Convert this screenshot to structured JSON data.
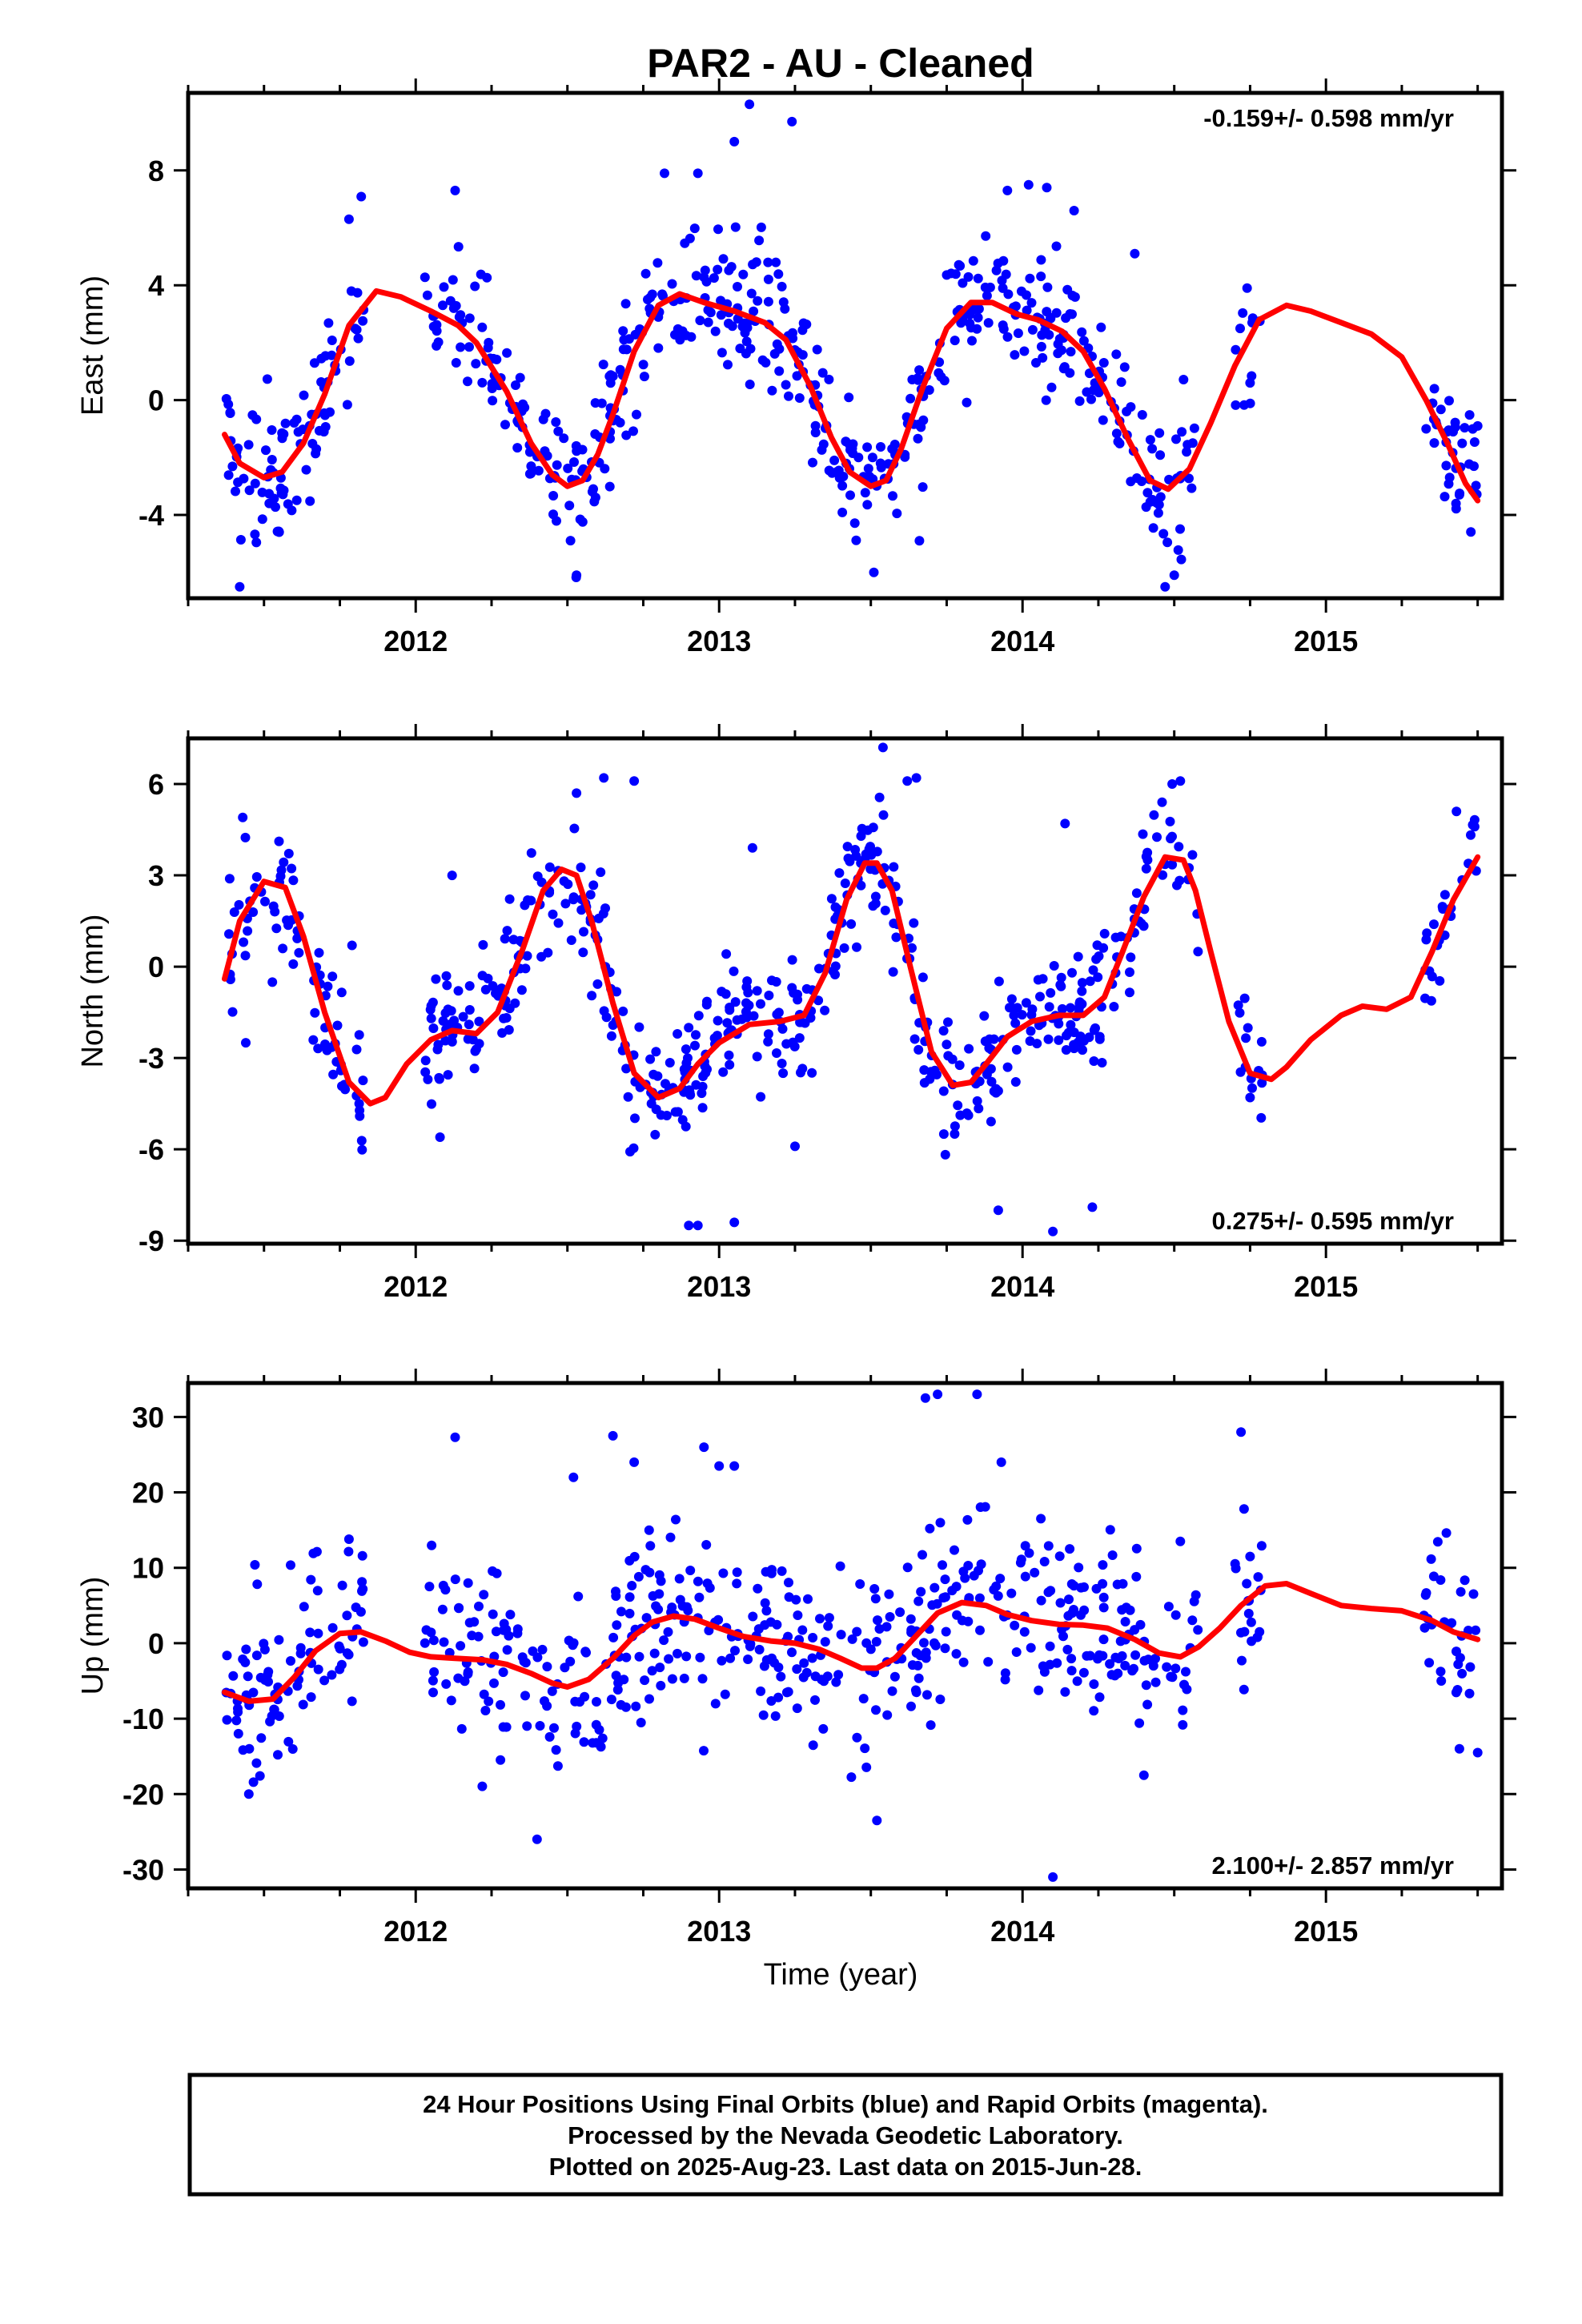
{
  "title": "PAR2  - AU - Cleaned",
  "footer": {
    "lines": [
      "24 Hour Positions Using Final Orbits (blue) and Rapid Orbits (magenta).",
      "Processed by the Nevada Geodetic Laboratory.",
      "Plotted on 2025-Aug-23. Last data on 2015-Jun-28."
    ]
  },
  "colors": {
    "final_orbits": "#0000ff",
    "model_fit": "#ff0000",
    "axes": "#000000"
  },
  "chart_data": [
    {
      "type": "scatter",
      "component": "east",
      "ylabel": "East (mm)",
      "xlabel": "",
      "rate_label": "-0.159+/- 0.598 mm/yr",
      "rate_position": "top-right",
      "xlim": [
        2011.25,
        2015.58
      ],
      "ylim": [
        -6.9,
        10.7
      ],
      "x_ticks": [
        2012,
        2013,
        2014,
        2015
      ],
      "y_ticks": [
        -4,
        0,
        4,
        8
      ],
      "grid": false,
      "series": [
        {
          "kind": "points",
          "n": 760,
          "x_range": [
            2011.37,
            2015.5
          ],
          "gaps": [
            [
              2011.83,
              2012.03
            ],
            [
              2014.58,
              2014.7
            ],
            [
              2014.79,
              2015.32
            ]
          ],
          "scatter_mm": 1.2,
          "points": [
            [
              2011.42,
              -6.5
            ],
            [
              2011.55,
              -4.6
            ],
            [
              2011.78,
              6.3
            ],
            [
              2012.13,
              7.3
            ],
            [
              2012.53,
              -6.1
            ],
            [
              2012.82,
              7.9
            ],
            [
              2012.93,
              7.9
            ],
            [
              2013.05,
              9.0
            ],
            [
              2013.1,
              10.3
            ],
            [
              2013.24,
              9.7
            ],
            [
              2013.51,
              -6.0
            ],
            [
              2013.66,
              -4.9
            ],
            [
              2013.95,
              7.3
            ],
            [
              2014.02,
              7.5
            ],
            [
              2014.08,
              7.4
            ],
            [
              2014.17,
              6.6
            ],
            [
              2014.37,
              5.1
            ],
            [
              2014.47,
              -6.5
            ],
            [
              2014.5,
              -6.1
            ],
            [
              2014.74,
              3.9
            ],
            [
              2014.75,
              0.6
            ],
            [
              2015.33,
              -1.0
            ],
            [
              2015.4,
              -1.1
            ],
            [
              2015.44,
              -3.3
            ],
            [
              2015.5,
              -0.9
            ]
          ]
        },
        {
          "kind": "line",
          "x": [
            2011.37,
            2011.42,
            2011.5,
            2011.56,
            2011.63,
            2011.7,
            2011.78,
            2011.87,
            2011.95,
            2012.05,
            2012.14,
            2012.2,
            2012.3,
            2012.38,
            2012.45,
            2012.5,
            2012.55,
            2012.6,
            2012.65,
            2012.72,
            2012.8,
            2012.87,
            2012.95,
            2013.05,
            2013.15,
            2013.22,
            2013.3,
            2013.37,
            2013.43,
            2013.5,
            2013.55,
            2013.6,
            2013.67,
            2013.75,
            2013.83,
            2013.9,
            2013.98,
            2014.05,
            2014.13,
            2014.2,
            2014.27,
            2014.35,
            2014.42,
            2014.48,
            2014.55,
            2014.62,
            2014.7,
            2014.78,
            2014.87,
            2014.95,
            2015.05,
            2015.15,
            2015.25,
            2015.33,
            2015.4,
            2015.46,
            2015.5
          ],
          "y": [
            -1.2,
            -2.2,
            -2.7,
            -2.5,
            -1.5,
            0.2,
            2.6,
            3.8,
            3.6,
            3.1,
            2.6,
            2.0,
            0.3,
            -1.5,
            -2.6,
            -3.0,
            -2.8,
            -1.9,
            -0.5,
            1.7,
            3.3,
            3.7,
            3.4,
            3.1,
            2.7,
            2.1,
            0.5,
            -1.3,
            -2.5,
            -3.0,
            -2.8,
            -1.7,
            0.4,
            2.5,
            3.4,
            3.4,
            3.0,
            2.8,
            2.4,
            1.7,
            0.4,
            -1.4,
            -2.8,
            -3.1,
            -2.4,
            -0.8,
            1.2,
            2.8,
            3.3,
            3.1,
            2.7,
            2.3,
            1.5,
            0.0,
            -1.5,
            -2.9,
            -3.5
          ]
        }
      ]
    },
    {
      "type": "scatter",
      "component": "north",
      "ylabel": "North (mm)",
      "xlabel": "",
      "rate_label": "0.275+/- 0.595 mm/yr",
      "rate_position": "bottom-right",
      "xlim": [
        2011.25,
        2015.58
      ],
      "ylim": [
        -9.1,
        7.5
      ],
      "x_ticks": [
        2012,
        2013,
        2014,
        2015
      ],
      "y_ticks": [
        -9,
        -6,
        -3,
        0,
        3,
        6
      ],
      "grid": false,
      "series": [
        {
          "kind": "points",
          "n": 760,
          "x_range": [
            2011.37,
            2015.5
          ],
          "gaps": [
            [
              2011.83,
              2012.03
            ],
            [
              2014.58,
              2014.7
            ],
            [
              2014.79,
              2015.32
            ]
          ],
          "scatter_mm": 1.1,
          "points": [
            [
              2011.44,
              -2.5
            ],
            [
              2011.43,
              4.9
            ],
            [
              2011.79,
              0.7
            ],
            [
              2012.12,
              3.0
            ],
            [
              2012.08,
              -5.6
            ],
            [
              2012.53,
              5.7
            ],
            [
              2012.62,
              6.2
            ],
            [
              2012.72,
              6.1
            ],
            [
              2012.9,
              -8.5
            ],
            [
              2012.93,
              -8.5
            ],
            [
              2013.05,
              -8.4
            ],
            [
              2013.11,
              3.9
            ],
            [
              2013.25,
              -5.9
            ],
            [
              2013.54,
              7.2
            ],
            [
              2013.62,
              6.1
            ],
            [
              2013.65,
              6.2
            ],
            [
              2013.92,
              -8.0
            ],
            [
              2014.1,
              -8.7
            ],
            [
              2014.14,
              4.7
            ],
            [
              2014.23,
              -7.9
            ],
            [
              2014.46,
              5.4
            ],
            [
              2014.52,
              6.1
            ],
            [
              2014.75,
              -4.3
            ],
            [
              2015.43,
              5.1
            ],
            [
              2015.49,
              4.6
            ]
          ]
        },
        {
          "kind": "line",
          "x": [
            2011.37,
            2011.42,
            2011.5,
            2011.57,
            2011.63,
            2011.7,
            2011.78,
            2011.85,
            2011.9,
            2011.97,
            2012.05,
            2012.12,
            2012.2,
            2012.27,
            2012.35,
            2012.42,
            2012.48,
            2012.53,
            2012.58,
            2012.65,
            2012.72,
            2012.8,
            2012.87,
            2012.93,
            2013.0,
            2013.1,
            2013.2,
            2013.28,
            2013.35,
            2013.42,
            2013.48,
            2013.52,
            2013.57,
            2013.63,
            2013.7,
            2013.77,
            2013.83,
            2013.88,
            2013.95,
            2014.03,
            2014.12,
            2014.2,
            2014.27,
            2014.33,
            2014.4,
            2014.47,
            2014.53,
            2014.57,
            2014.62,
            2014.68,
            2014.75,
            2014.82,
            2014.87,
            2014.95,
            2015.05,
            2015.12,
            2015.2,
            2015.28,
            2015.35,
            2015.42,
            2015.5
          ],
          "y": [
            -0.4,
            1.5,
            2.8,
            2.6,
            1.0,
            -1.5,
            -3.8,
            -4.5,
            -4.3,
            -3.2,
            -2.4,
            -2.1,
            -2.2,
            -1.5,
            0.5,
            2.5,
            3.2,
            3.0,
            1.5,
            -1.2,
            -3.5,
            -4.3,
            -4.0,
            -3.2,
            -2.5,
            -1.9,
            -1.8,
            -1.6,
            -0.2,
            2.2,
            3.4,
            3.4,
            2.5,
            0.0,
            -2.8,
            -3.9,
            -3.8,
            -3.2,
            -2.3,
            -1.8,
            -1.6,
            -1.6,
            -1.0,
            0.5,
            2.3,
            3.6,
            3.5,
            2.5,
            0.5,
            -1.8,
            -3.5,
            -3.7,
            -3.3,
            -2.4,
            -1.6,
            -1.3,
            -1.4,
            -1.0,
            0.5,
            2.2,
            3.6
          ]
        }
      ]
    },
    {
      "type": "scatter",
      "component": "up",
      "ylabel": "Up (mm)",
      "xlabel": "Time (year)",
      "rate_label": "2.100+/- 2.857 mm/yr",
      "rate_position": "bottom-right",
      "xlim": [
        2011.25,
        2015.58
      ],
      "ylim": [
        -32.5,
        34.5
      ],
      "x_ticks": [
        2012,
        2013,
        2014,
        2015
      ],
      "y_ticks": [
        -30,
        -20,
        -10,
        0,
        10,
        20,
        30
      ],
      "grid": false,
      "series": [
        {
          "kind": "points",
          "n": 760,
          "x_range": [
            2011.37,
            2015.5
          ],
          "gaps": [
            [
              2011.83,
              2012.03
            ],
            [
              2014.58,
              2014.7
            ],
            [
              2014.79,
              2015.32
            ]
          ],
          "scatter_mm": 6.0,
          "points": [
            [
              2011.45,
              -20.0
            ],
            [
              2011.47,
              10.4
            ],
            [
              2011.78,
              13.8
            ],
            [
              2012.13,
              27.3
            ],
            [
              2012.4,
              -26.0
            ],
            [
              2012.52,
              22.0
            ],
            [
              2012.65,
              27.5
            ],
            [
              2012.72,
              24.0
            ],
            [
              2012.95,
              26.0
            ],
            [
              2013.0,
              23.5
            ],
            [
              2013.05,
              23.5
            ],
            [
              2013.52,
              -23.5
            ],
            [
              2013.68,
              32.5
            ],
            [
              2013.72,
              33.0
            ],
            [
              2013.85,
              33.0
            ],
            [
              2013.93,
              24.0
            ],
            [
              2014.1,
              -31.0
            ],
            [
              2014.4,
              -17.5
            ],
            [
              2014.52,
              13.5
            ],
            [
              2014.72,
              28.0
            ],
            [
              2014.73,
              17.8
            ],
            [
              2014.75,
              11.5
            ],
            [
              2015.38,
              -5.0
            ],
            [
              2015.44,
              -14.0
            ],
            [
              2015.5,
              -14.5
            ]
          ]
        },
        {
          "kind": "line",
          "x": [
            2011.37,
            2011.45,
            2011.53,
            2011.6,
            2011.67,
            2011.75,
            2011.82,
            2011.9,
            2011.98,
            2012.05,
            2012.13,
            2012.22,
            2012.3,
            2012.38,
            2012.45,
            2012.5,
            2012.57,
            2012.65,
            2012.72,
            2012.78,
            2012.85,
            2012.92,
            2013.0,
            2013.08,
            2013.17,
            2013.25,
            2013.33,
            2013.4,
            2013.47,
            2013.52,
            2013.58,
            2013.65,
            2013.72,
            2013.8,
            2013.88,
            2013.95,
            2014.03,
            2014.12,
            2014.2,
            2014.28,
            2014.37,
            2014.45,
            2014.52,
            2014.58,
            2014.65,
            2014.72,
            2014.8,
            2014.87,
            2014.95,
            2015.05,
            2015.15,
            2015.25,
            2015.35,
            2015.42,
            2015.5
          ],
          "y": [
            -6.5,
            -7.7,
            -7.4,
            -4.5,
            -1.0,
            1.3,
            1.5,
            0.3,
            -1.2,
            -1.8,
            -2.0,
            -2.2,
            -2.8,
            -4.0,
            -5.3,
            -5.8,
            -4.8,
            -2.0,
            1.0,
            2.8,
            3.6,
            3.2,
            2.0,
            0.9,
            0.3,
            0.0,
            -0.8,
            -2.0,
            -3.3,
            -3.3,
            -2.0,
            1.0,
            4.0,
            5.4,
            5.0,
            3.8,
            3.0,
            2.5,
            2.4,
            2.0,
            0.5,
            -1.3,
            -1.8,
            -0.5,
            2.0,
            5.0,
            7.6,
            7.9,
            6.6,
            5.0,
            4.6,
            4.3,
            3.0,
            1.5,
            0.5
          ]
        }
      ]
    }
  ]
}
